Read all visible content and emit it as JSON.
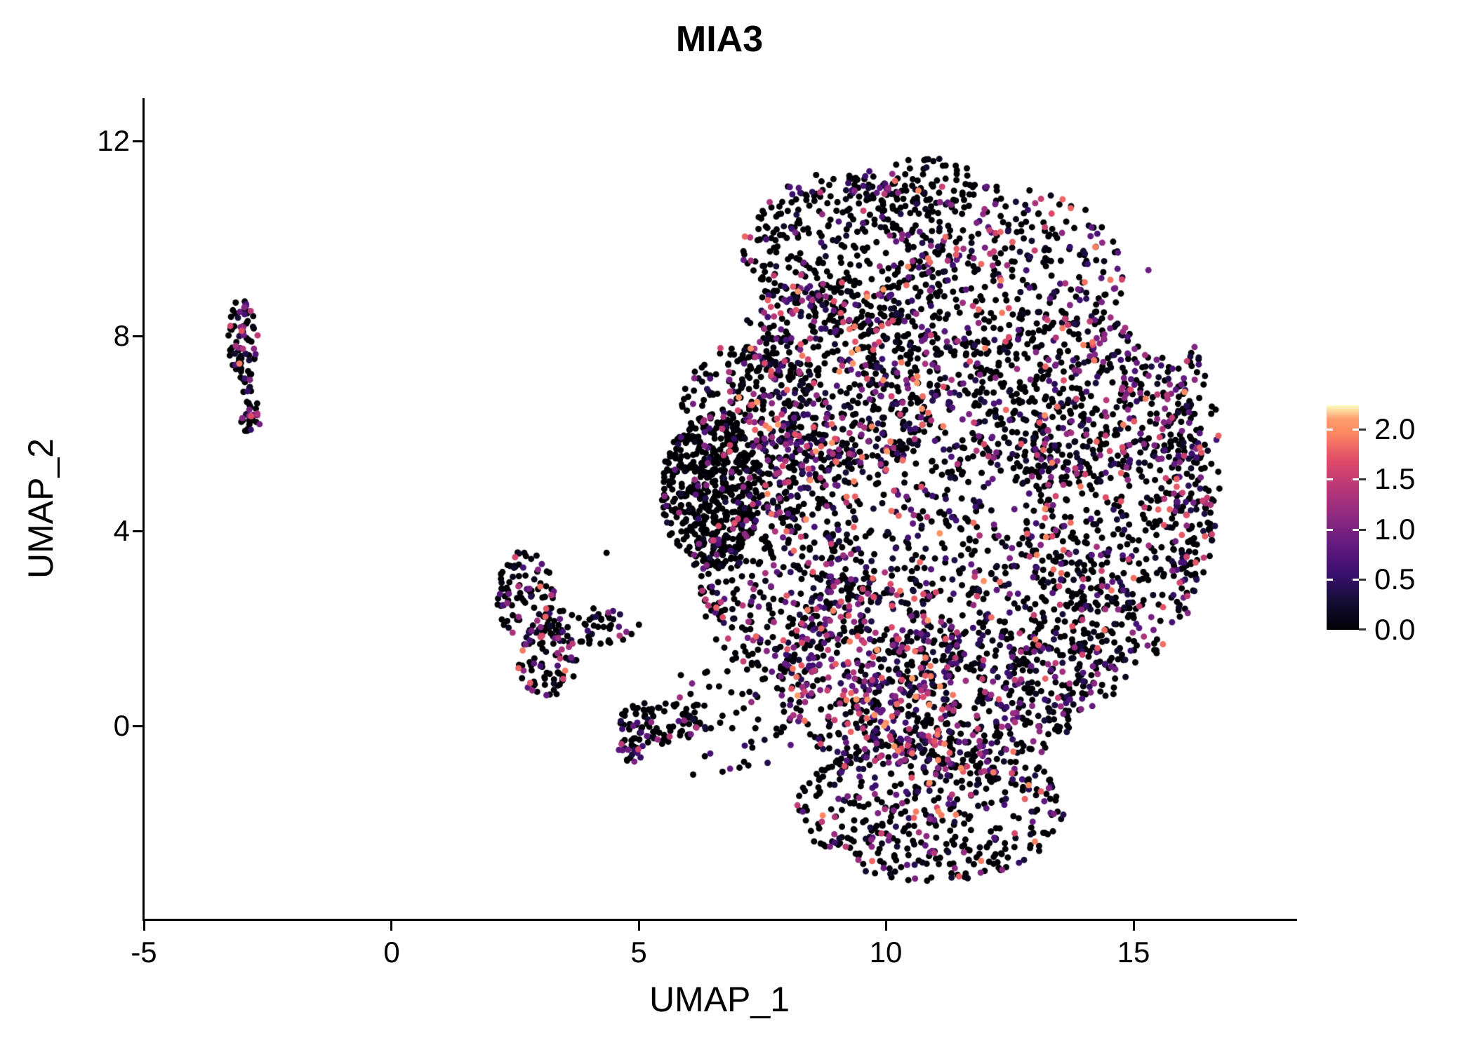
{
  "title": "MIA3",
  "axes": {
    "x_label": "UMAP_1",
    "y_label": "UMAP_2"
  },
  "chart_data": {
    "type": "scatter",
    "title": "MIA3",
    "xlabel": "UMAP_1",
    "ylabel": "UMAP_2",
    "xlim": [
      -5,
      18.3
    ],
    "ylim": [
      -3.95,
      12.85
    ],
    "grid": false,
    "legend_position": "right",
    "x_tick_values": [
      -5,
      0,
      5,
      10,
      15
    ],
    "y_tick_values": [
      12,
      8,
      4,
      0
    ],
    "x_tick_labels": [
      "-5",
      "0",
      "5",
      "10",
      "15"
    ],
    "y_tick_labels": [
      "12",
      "8",
      "4",
      "0"
    ],
    "point_radius": 4.5,
    "colorbar": {
      "tick_labels": [
        "2.0",
        "1.5",
        "1.0",
        "0.5",
        "0.0"
      ],
      "tick_values": [
        2.0,
        1.5,
        1.0,
        0.5,
        0.0
      ],
      "vmin": 0.0,
      "vmax": 2.24
    },
    "color_scale": {
      "name": "magma",
      "anchors": [
        {
          "t": 0.0,
          "c": "#000004"
        },
        {
          "t": 0.13,
          "c": "#140e36"
        },
        {
          "t": 0.25,
          "c": "#3b0f70"
        },
        {
          "t": 0.38,
          "c": "#641a80"
        },
        {
          "t": 0.5,
          "c": "#8c2981"
        },
        {
          "t": 0.63,
          "c": "#b73779"
        },
        {
          "t": 0.75,
          "c": "#de4968"
        },
        {
          "t": 0.88,
          "c": "#fc8961"
        },
        {
          "t": 0.94,
          "c": "#fe9f6d"
        },
        {
          "t": 1.0,
          "c": "#fcfdbf"
        }
      ]
    },
    "clusters": [
      {
        "name": "sat-left-upper",
        "n": 72,
        "cx": -3.0,
        "cy": 7.95,
        "rx": 0.3,
        "ry": 0.85,
        "p0": 0.5,
        "pw": 1.6,
        "emax": 2.0
      },
      {
        "name": "sat-left-trail",
        "n": 10,
        "cx": -2.9,
        "cy": 7.0,
        "rx": 0.12,
        "ry": 0.3,
        "p0": 0.6,
        "pw": 2.0,
        "emax": 1.2
      },
      {
        "name": "sat-left-lower",
        "n": 28,
        "cx": -2.85,
        "cy": 6.35,
        "rx": 0.22,
        "ry": 0.35,
        "p0": 0.45,
        "pw": 1.4,
        "emax": 1.8
      },
      {
        "name": "mid-cluster-upper",
        "n": 95,
        "cx": 2.7,
        "cy": 2.7,
        "rx": 0.6,
        "ry": 0.9,
        "p0": 0.5,
        "pw": 1.7,
        "emax": 2.0
      },
      {
        "name": "mid-cluster-lower",
        "n": 85,
        "cx": 3.15,
        "cy": 1.35,
        "rx": 0.6,
        "ry": 0.75,
        "p0": 0.45,
        "pw": 1.4,
        "emax": 2.0
      },
      {
        "name": "mid-cluster-tail",
        "n": 60,
        "cx": 4.05,
        "cy": 2.05,
        "rx": 1.0,
        "ry": 0.4,
        "p0": 0.68,
        "pw": 2.0,
        "emax": 1.6
      },
      {
        "name": "small-bottom",
        "n": 85,
        "cx": 5.4,
        "cy": 0.05,
        "rx": 0.85,
        "ry": 0.45,
        "p0": 0.72,
        "pw": 2.2,
        "emax": 1.6
      },
      {
        "name": "small-bottom-tip",
        "n": 22,
        "cx": 4.85,
        "cy": -0.5,
        "rx": 0.28,
        "ry": 0.28,
        "p0": 0.5,
        "pw": 1.5,
        "emax": 1.7
      },
      {
        "name": "main-top",
        "n": 380,
        "cx": 9.3,
        "cy": 9.7,
        "rx": 2.2,
        "ry": 1.7,
        "p0": 0.6,
        "pw": 2.0,
        "emax": 2.0
      },
      {
        "name": "main-top-right",
        "n": 360,
        "cx": 12.4,
        "cy": 9.2,
        "rx": 2.4,
        "ry": 1.9,
        "p0": 0.55,
        "pw": 2.0,
        "emax": 2.0
      },
      {
        "name": "main-top-spur",
        "n": 90,
        "cx": 10.7,
        "cy": 11.15,
        "rx": 1.5,
        "ry": 0.55,
        "p0": 0.55,
        "pw": 2.0,
        "emax": 1.6
      },
      {
        "name": "main-upper-mid",
        "n": 520,
        "cx": 8.9,
        "cy": 7.1,
        "rx": 2.2,
        "ry": 2.2,
        "p0": 0.45,
        "pw": 1.9,
        "emax": 2.1
      },
      {
        "name": "main-left-upper",
        "n": 240,
        "cx": 7.2,
        "cy": 6.2,
        "rx": 1.4,
        "ry": 1.7,
        "p0": 0.65,
        "pw": 2.2,
        "emax": 1.8
      },
      {
        "name": "main-left-wedge",
        "n": 460,
        "cx": 6.45,
        "cy": 4.8,
        "rx": 1.0,
        "ry": 1.6,
        "p0": 0.82,
        "pw": 2.4,
        "emax": 1.6
      },
      {
        "name": "main-center",
        "n": 620,
        "cx": 10.4,
        "cy": 5.2,
        "rx": 3.0,
        "ry": 2.8,
        "p0": 0.5,
        "pw": 2.0,
        "emax": 2.1
      },
      {
        "name": "main-right-upper",
        "n": 300,
        "cx": 13.5,
        "cy": 6.7,
        "rx": 2.0,
        "ry": 2.0,
        "p0": 0.5,
        "pw": 2.0,
        "emax": 2.0
      },
      {
        "name": "main-right",
        "n": 560,
        "cx": 14.7,
        "cy": 4.6,
        "rx": 1.9,
        "ry": 3.4,
        "p0": 0.55,
        "pw": 1.9,
        "emax": 2.0
      },
      {
        "name": "main-right-edge",
        "n": 140,
        "cx": 16.1,
        "cy": 5.3,
        "rx": 0.65,
        "ry": 2.6,
        "p0": 0.45,
        "pw": 1.8,
        "emax": 1.8
      },
      {
        "name": "main-left-lower",
        "n": 300,
        "cx": 7.9,
        "cy": 2.9,
        "rx": 1.7,
        "ry": 2.0,
        "p0": 0.55,
        "pw": 2.0,
        "emax": 2.0
      },
      {
        "name": "main-bottom-center",
        "n": 470,
        "cx": 9.7,
        "cy": 1.1,
        "rx": 1.9,
        "ry": 2.0,
        "p0": 0.33,
        "pw": 1.4,
        "emax": 2.1
      },
      {
        "name": "main-bottom-right",
        "n": 360,
        "cx": 11.6,
        "cy": 0.6,
        "rx": 2.4,
        "ry": 1.5,
        "p0": 0.5,
        "pw": 1.8,
        "emax": 2.0
      },
      {
        "name": "main-right-lower",
        "n": 310,
        "cx": 13.3,
        "cy": 1.9,
        "rx": 1.8,
        "ry": 1.8,
        "p0": 0.55,
        "pw": 2.0,
        "emax": 1.9
      },
      {
        "name": "main-bottom-lobe",
        "n": 470,
        "cx": 10.9,
        "cy": -1.7,
        "rx": 2.7,
        "ry": 1.5,
        "p0": 0.55,
        "pw": 1.9,
        "emax": 2.0
      },
      {
        "name": "main-gap-strip",
        "n": 70,
        "cx": 7.0,
        "cy": 0.4,
        "rx": 1.3,
        "ry": 1.5,
        "p0": 0.6,
        "pw": 2.0,
        "emax": 1.5
      }
    ],
    "extra_points": [
      {
        "x": 4.35,
        "y": 3.55,
        "e": 0
      },
      {
        "x": 15.3,
        "y": 9.35,
        "e": 0.9
      },
      {
        "x": 6.1,
        "y": -1.0,
        "e": 0
      },
      {
        "x": 2.35,
        "y": 3.3,
        "e": 0
      }
    ]
  }
}
